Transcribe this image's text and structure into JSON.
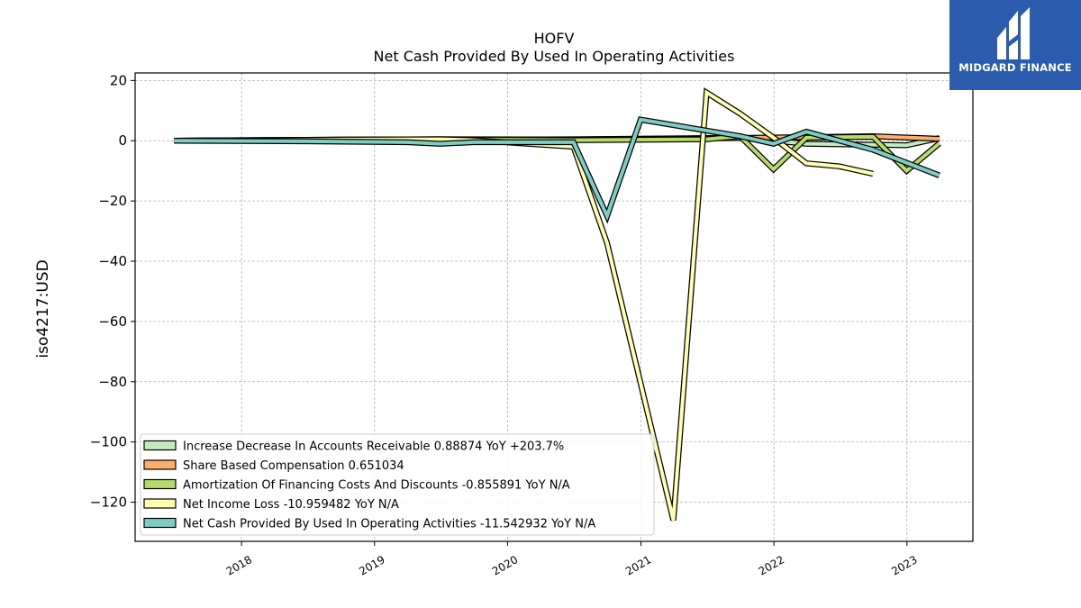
{
  "brand": {
    "name": "MIDGARD FINANCE",
    "logo_icon": "midgard-logo-icon",
    "bg_color": "#2b5cad"
  },
  "chart_data": {
    "type": "line",
    "title": "HOFV",
    "subtitle": "Net Cash Provided By Used In Operating Activities",
    "ylabel": "iso4217:USD",
    "xlabel": "",
    "xlim": [
      "2017-03-15",
      "2023-07-01"
    ],
    "ylim": [
      -133,
      22.5
    ],
    "x_ticks": [
      "2018",
      "2019",
      "2020",
      "2021",
      "2022",
      "2023"
    ],
    "y_ticks": [
      20,
      0,
      -20,
      -40,
      -60,
      -80,
      -100,
      -120
    ],
    "y_tick_labels": [
      "20",
      "0",
      "−20",
      "−40",
      "−60",
      "−80",
      "−100",
      "−120"
    ],
    "grid": true,
    "legend_position": "lower-left",
    "series": [
      {
        "name": "Increase Decrease In Accounts Receivable",
        "legend_label": "Increase Decrease In Accounts Receivable  0.88874 YoY +203.7%",
        "color": "#c7e9c0",
        "points": [
          [
            "2017-06-30",
            0
          ],
          [
            "2020-06-30",
            0.5
          ],
          [
            "2021-09-30",
            1.0
          ],
          [
            "2022-03-31",
            -1.0
          ],
          [
            "2022-12-31",
            -1.5
          ],
          [
            "2023-03-31",
            0.89
          ]
        ]
      },
      {
        "name": "Share Based Compensation",
        "legend_label": "Share Based Compensation  0.651034",
        "color": "#fdae6b",
        "points": [
          [
            "2017-06-30",
            0
          ],
          [
            "2018-06-30",
            0.3
          ],
          [
            "2019-06-30",
            0.5
          ],
          [
            "2020-06-30",
            0.4
          ],
          [
            "2021-06-30",
            0.8
          ],
          [
            "2022-03-31",
            1.2
          ],
          [
            "2022-09-30",
            1.5
          ],
          [
            "2023-03-31",
            0.65
          ]
        ]
      },
      {
        "name": "Amortization Of Financing Costs And Discounts",
        "legend_label": "Amortization Of Financing Costs And Discounts  -0.855891 YoY N/A",
        "color": "#b5dc6b",
        "points": [
          [
            "2017-06-30",
            0
          ],
          [
            "2019-06-30",
            0.5
          ],
          [
            "2020-06-30",
            0.2
          ],
          [
            "2021-06-30",
            0.5
          ],
          [
            "2021-09-30",
            1.5
          ],
          [
            "2021-12-31",
            -9.5
          ],
          [
            "2022-03-31",
            1.0
          ],
          [
            "2022-06-30",
            1.2
          ],
          [
            "2022-09-30",
            1.3
          ],
          [
            "2022-12-31",
            -10.0
          ],
          [
            "2023-03-31",
            -0.86
          ]
        ]
      },
      {
        "name": "Net Income Loss",
        "legend_label": "Net Income Loss  -10.959482 YoY N/A",
        "color": "#ffffb2",
        "points": [
          [
            "2017-06-30",
            0
          ],
          [
            "2018-06-30",
            0.3
          ],
          [
            "2019-06-30",
            0.5
          ],
          [
            "2019-09-30",
            0.2
          ],
          [
            "2020-06-30",
            -2.0
          ],
          [
            "2020-09-30",
            -34.0
          ],
          [
            "2021-03-31",
            -126.0
          ],
          [
            "2021-06-30",
            16.0
          ],
          [
            "2021-09-30",
            9.0
          ],
          [
            "2021-12-31",
            1.0
          ],
          [
            "2022-03-31",
            -7.5
          ],
          [
            "2022-06-30",
            -8.5
          ],
          [
            "2022-09-30",
            -11.0
          ]
        ]
      },
      {
        "name": "Net Cash Provided By Used In Operating Activities",
        "legend_label": "Net Cash Provided By Used In Operating Activities  -11.542932 YoY N/A",
        "color": "#7ecdc4",
        "points": [
          [
            "2017-06-30",
            0
          ],
          [
            "2018-06-30",
            -0.2
          ],
          [
            "2019-03-31",
            -0.5
          ],
          [
            "2019-06-30",
            -1.0
          ],
          [
            "2019-09-30",
            -0.5
          ],
          [
            "2020-06-30",
            -0.5
          ],
          [
            "2020-09-30",
            -25.0
          ],
          [
            "2020-12-31",
            7.0
          ],
          [
            "2021-09-30",
            1.5
          ],
          [
            "2021-12-31",
            -1.0
          ],
          [
            "2022-03-31",
            3.0
          ],
          [
            "2022-09-30",
            -3.0
          ],
          [
            "2023-03-31",
            -11.54
          ]
        ]
      }
    ]
  }
}
